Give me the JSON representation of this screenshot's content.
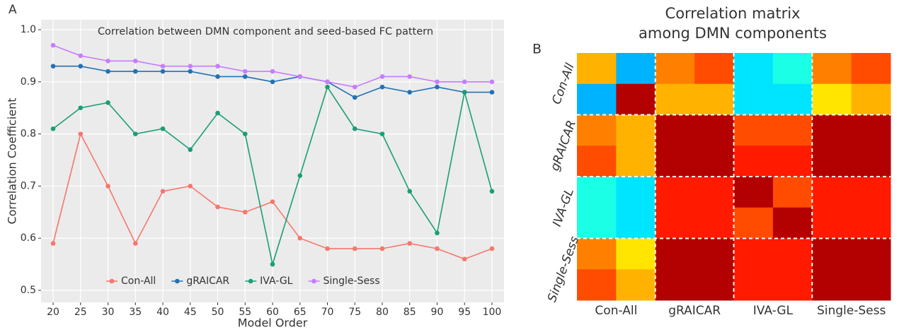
{
  "chart_data": [
    {
      "type": "line",
      "panel_label": "A",
      "annotation": "Correlation between DMN component and seed-based FC pattern",
      "xlabel": "Model Order",
      "ylabel": "Correlation Coefficient",
      "x": [
        20,
        25,
        30,
        35,
        40,
        45,
        50,
        55,
        60,
        65,
        70,
        75,
        80,
        85,
        90,
        95,
        100
      ],
      "xlim": [
        17.8,
        102.2
      ],
      "xticks": [
        20,
        25,
        30,
        35,
        40,
        45,
        50,
        55,
        60,
        65,
        70,
        75,
        80,
        85,
        90,
        95,
        100
      ],
      "ylim": [
        0.477,
        1.019
      ],
      "yticks": [
        0.5,
        0.6,
        0.7,
        0.8,
        0.9,
        {
          "value": 1,
          "label": "1.0"
        }
      ],
      "grid": true,
      "legend": "bottom",
      "series": [
        {
          "name": "Con-All",
          "color": "#f8766d",
          "values": [
            0.59,
            0.8,
            0.7,
            0.59,
            0.69,
            0.7,
            0.66,
            0.65,
            0.67,
            0.6,
            0.58,
            0.58,
            0.58,
            0.59,
            0.58,
            0.56,
            0.58
          ]
        },
        {
          "name": "gRAICAR",
          "color": "#2272b5",
          "values": [
            0.93,
            0.93,
            0.92,
            0.92,
            0.92,
            0.92,
            0.91,
            0.91,
            0.9,
            0.91,
            0.9,
            0.87,
            0.89,
            0.88,
            0.89,
            0.88,
            0.88
          ]
        },
        {
          "name": "IVA-GL",
          "color": "#1b9e77",
          "values": [
            0.81,
            0.85,
            0.86,
            0.8,
            0.81,
            0.77,
            0.84,
            0.8,
            0.55,
            0.72,
            0.89,
            0.81,
            0.8,
            0.69,
            0.61,
            0.88,
            0.69
          ]
        },
        {
          "name": "Single-Sess",
          "color": "#c77cff",
          "values": [
            0.97,
            0.95,
            0.94,
            0.94,
            0.93,
            0.93,
            0.93,
            0.92,
            0.92,
            0.91,
            0.9,
            0.89,
            0.91,
            0.91,
            0.9,
            0.9,
            0.9
          ]
        }
      ]
    },
    {
      "type": "heatmap",
      "panel_label": "B",
      "title_lines": [
        "Correlation matrix",
        "among DMN components"
      ],
      "groups": [
        "Con-All",
        "gRAICAR",
        "IVA-GL",
        "Single-Sess"
      ],
      "clim": [
        0,
        1
      ],
      "colormap": "jet",
      "matrix": [
        [
          0.7,
          0.3,
          0.75,
          0.8,
          0.35,
          0.4,
          0.75,
          0.8
        ],
        [
          0.3,
          0.95,
          0.7,
          0.7,
          0.35,
          0.35,
          0.65,
          0.7
        ],
        [
          0.75,
          0.7,
          0.95,
          0.95,
          0.8,
          0.8,
          0.95,
          0.95
        ],
        [
          0.8,
          0.7,
          0.95,
          0.95,
          0.85,
          0.85,
          0.95,
          0.95
        ],
        [
          0.4,
          0.35,
          0.85,
          0.85,
          0.95,
          0.8,
          0.85,
          0.85
        ],
        [
          0.4,
          0.35,
          0.85,
          0.85,
          0.8,
          0.95,
          0.85,
          0.85
        ],
        [
          0.75,
          0.65,
          0.95,
          0.95,
          0.85,
          0.85,
          0.95,
          0.95
        ],
        [
          0.8,
          0.7,
          0.95,
          0.95,
          0.85,
          0.85,
          0.95,
          0.95
        ]
      ]
    }
  ]
}
